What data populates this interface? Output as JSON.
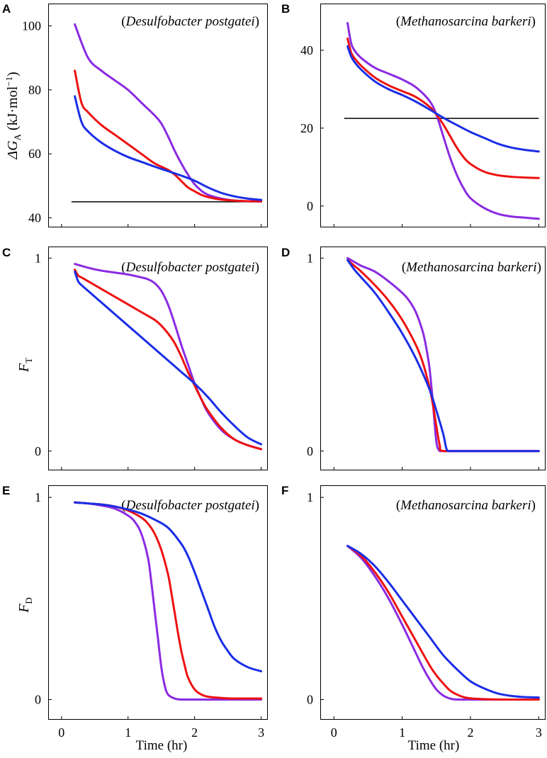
{
  "colors": {
    "purple": "#8a2be2",
    "red": "#ee1111",
    "blue": "#1a2ee6",
    "axis": "#000000",
    "reference": "#000000"
  },
  "x_axis": {
    "label": "Time (hr)",
    "ticks": [
      "0",
      "1",
      "2",
      "3"
    ]
  },
  "chart_data": [
    {
      "panel": "A",
      "type": "line",
      "organism": "Desulfobacter postgatei",
      "ylabel": {
        "prefix": "ΔG",
        "sub": "A",
        "unit": " (kJ·mol",
        "sup": "−1",
        "close": ")"
      },
      "xlim": [
        -0.2,
        3.1
      ],
      "ylim": [
        37,
        107
      ],
      "yticks": [
        40,
        60,
        80,
        100
      ],
      "xtick_labels": false,
      "hline": 45,
      "series": [
        {
          "color": "purple",
          "x": [
            0.2,
            0.4,
            0.6,
            0.8,
            1.0,
            1.2,
            1.4,
            1.5,
            1.6,
            1.7,
            1.8,
            1.9,
            2.0,
            2.1,
            2.2,
            2.4,
            2.6,
            2.8,
            3.0
          ],
          "y": [
            100.5,
            90,
            86,
            83,
            80,
            76,
            72,
            69.5,
            65.5,
            61,
            57,
            53.5,
            50.5,
            48.5,
            47.2,
            46,
            45.4,
            45.2,
            45.1
          ]
        },
        {
          "color": "red",
          "x": [
            0.2,
            0.3,
            0.4,
            0.6,
            0.8,
            1.0,
            1.2,
            1.4,
            1.6,
            1.7,
            1.8,
            1.9,
            2.0,
            2.1,
            2.2,
            2.4,
            2.6,
            2.8,
            3.0
          ],
          "y": [
            86,
            76,
            73,
            69,
            66,
            63,
            60,
            57,
            55,
            53.5,
            51.5,
            49.5,
            48.3,
            47.2,
            46.5,
            45.7,
            45.4,
            45.2,
            45.1
          ]
        },
        {
          "color": "blue",
          "x": [
            0.2,
            0.3,
            0.4,
            0.6,
            0.8,
            1.0,
            1.2,
            1.4,
            1.6,
            1.8,
            2.0,
            2.2,
            2.4,
            2.6,
            2.8,
            3.0
          ],
          "y": [
            78,
            70,
            67,
            63.5,
            61,
            59,
            57.5,
            56,
            54.6,
            53.2,
            51.6,
            49.5,
            47.8,
            46.7,
            46,
            45.6
          ]
        }
      ]
    },
    {
      "panel": "B",
      "type": "line",
      "organism": "Methanosarcina barkeri",
      "xlim": [
        -0.2,
        3.1
      ],
      "ylim": [
        -5.5,
        52
      ],
      "yticks": [
        0,
        20,
        40
      ],
      "xtick_labels": false,
      "hline": 22.5,
      "series": [
        {
          "color": "purple",
          "x": [
            0.2,
            0.25,
            0.3,
            0.4,
            0.6,
            0.8,
            1.0,
            1.2,
            1.4,
            1.5,
            1.6,
            1.7,
            1.8,
            1.9,
            2.0,
            2.2,
            2.4,
            2.6,
            2.8,
            3.0
          ],
          "y": [
            47,
            42,
            40,
            38,
            35.5,
            34,
            32.5,
            30.5,
            27,
            23.5,
            18,
            12.5,
            8,
            4.5,
            2,
            -0.5,
            -2,
            -2.7,
            -3,
            -3.3
          ]
        },
        {
          "color": "red",
          "x": [
            0.2,
            0.25,
            0.3,
            0.4,
            0.6,
            0.8,
            1.0,
            1.2,
            1.4,
            1.5,
            1.6,
            1.7,
            1.8,
            1.9,
            2.0,
            2.2,
            2.4,
            2.6,
            2.8,
            3.0
          ],
          "y": [
            43,
            39.5,
            38,
            36,
            33,
            31,
            29.5,
            28,
            25.5,
            23.5,
            21,
            18,
            15,
            12.5,
            10.8,
            8.8,
            7.9,
            7.5,
            7.3,
            7.2
          ]
        },
        {
          "color": "blue",
          "x": [
            0.2,
            0.25,
            0.3,
            0.4,
            0.6,
            0.8,
            1.0,
            1.2,
            1.4,
            1.6,
            1.8,
            2.0,
            2.2,
            2.4,
            2.6,
            2.8,
            3.0
          ],
          "y": [
            41,
            38.5,
            37,
            35,
            32,
            30,
            28.5,
            26.8,
            24.8,
            22.7,
            20.8,
            19,
            17.5,
            16,
            15,
            14.4,
            14
          ]
        }
      ]
    },
    {
      "panel": "C",
      "type": "line",
      "organism": "Desulfobacter postgatei",
      "ylabel": {
        "prefix": "F",
        "sub": "T"
      },
      "xlim": [
        -0.2,
        3.1
      ],
      "ylim": [
        -0.1,
        1.06
      ],
      "yticks": [
        0,
        1
      ],
      "xtick_labels": false,
      "series": [
        {
          "color": "purple",
          "x": [
            0.2,
            0.4,
            0.6,
            0.8,
            1.0,
            1.2,
            1.3,
            1.4,
            1.5,
            1.6,
            1.7,
            1.8,
            1.9,
            2.0,
            2.1,
            2.2,
            2.4,
            2.6,
            2.8,
            3.0
          ],
          "y": [
            0.97,
            0.95,
            0.935,
            0.925,
            0.915,
            0.9,
            0.89,
            0.87,
            0.83,
            0.76,
            0.66,
            0.55,
            0.45,
            0.35,
            0.27,
            0.2,
            0.11,
            0.06,
            0.03,
            0.01
          ]
        },
        {
          "color": "red",
          "x": [
            0.2,
            0.25,
            0.3,
            0.4,
            0.6,
            0.8,
            1.0,
            1.2,
            1.4,
            1.5,
            1.6,
            1.7,
            1.8,
            1.9,
            2.0,
            2.1,
            2.2,
            2.4,
            2.6,
            2.8,
            3.0
          ],
          "y": [
            0.94,
            0.91,
            0.9,
            0.88,
            0.84,
            0.8,
            0.76,
            0.72,
            0.68,
            0.65,
            0.61,
            0.56,
            0.49,
            0.41,
            0.34,
            0.27,
            0.21,
            0.12,
            0.06,
            0.03,
            0.01
          ]
        },
        {
          "color": "blue",
          "x": [
            0.2,
            0.25,
            0.3,
            0.4,
            0.6,
            0.8,
            1.0,
            1.2,
            1.4,
            1.6,
            1.8,
            2.0,
            2.2,
            2.4,
            2.6,
            2.8,
            3.0
          ],
          "y": [
            0.93,
            0.88,
            0.86,
            0.83,
            0.77,
            0.71,
            0.65,
            0.59,
            0.53,
            0.47,
            0.41,
            0.35,
            0.28,
            0.2,
            0.13,
            0.07,
            0.035
          ]
        }
      ]
    },
    {
      "panel": "D",
      "type": "line",
      "organism": "Methanosarcina barkeri",
      "xlim": [
        -0.2,
        3.1
      ],
      "ylim": [
        -0.1,
        1.06
      ],
      "yticks": [
        0,
        1
      ],
      "xtick_labels": false,
      "series": [
        {
          "color": "purple",
          "x": [
            0.2,
            0.3,
            0.4,
            0.6,
            0.8,
            1.0,
            1.1,
            1.2,
            1.3,
            1.35,
            1.4,
            1.45,
            1.5,
            1.55,
            1.6,
            2.0,
            2.5,
            3.0
          ],
          "y": [
            1.0,
            0.98,
            0.96,
            0.93,
            0.88,
            0.82,
            0.78,
            0.72,
            0.62,
            0.54,
            0.43,
            0.25,
            0.05,
            0.0,
            0.0,
            0.0,
            0.0,
            0.0
          ]
        },
        {
          "color": "red",
          "x": [
            0.2,
            0.3,
            0.4,
            0.6,
            0.8,
            1.0,
            1.2,
            1.3,
            1.4,
            1.45,
            1.5,
            1.55,
            1.6,
            2.0,
            2.5,
            3.0
          ],
          "y": [
            0.99,
            0.96,
            0.93,
            0.86,
            0.78,
            0.68,
            0.55,
            0.46,
            0.33,
            0.24,
            0.13,
            0.03,
            0.0,
            0.0,
            0.0,
            0.0
          ]
        },
        {
          "color": "blue",
          "x": [
            0.2,
            0.3,
            0.4,
            0.6,
            0.8,
            1.0,
            1.2,
            1.4,
            1.5,
            1.6,
            1.65,
            1.7,
            2.0,
            2.5,
            3.0
          ],
          "y": [
            0.99,
            0.94,
            0.9,
            0.82,
            0.72,
            0.61,
            0.48,
            0.32,
            0.21,
            0.09,
            0.01,
            0.0,
            0.0,
            0.0,
            0.0
          ]
        }
      ]
    },
    {
      "panel": "E",
      "type": "line",
      "organism": "Desulfobacter postgatei",
      "ylabel": {
        "prefix": "F",
        "sub": "D"
      },
      "xlim": [
        -0.2,
        3.1
      ],
      "ylim": [
        -0.1,
        1.06
      ],
      "yticks": [
        0,
        1
      ],
      "xtick_labels": true,
      "series": [
        {
          "color": "purple",
          "x": [
            0.2,
            0.4,
            0.6,
            0.8,
            1.0,
            1.1,
            1.2,
            1.3,
            1.35,
            1.4,
            1.45,
            1.5,
            1.55,
            1.6,
            1.7,
            1.8,
            2.0,
            2.5,
            3.0
          ],
          "y": [
            0.975,
            0.97,
            0.96,
            0.945,
            0.91,
            0.88,
            0.82,
            0.7,
            0.58,
            0.44,
            0.3,
            0.16,
            0.07,
            0.025,
            0.005,
            0.0,
            0.0,
            0.0,
            0.0
          ]
        },
        {
          "color": "red",
          "x": [
            0.2,
            0.4,
            0.6,
            0.8,
            1.0,
            1.2,
            1.3,
            1.4,
            1.5,
            1.6,
            1.65,
            1.7,
            1.75,
            1.8,
            1.85,
            1.9,
            2.0,
            2.1,
            2.2,
            2.4,
            2.6,
            3.0
          ],
          "y": [
            0.975,
            0.97,
            0.965,
            0.955,
            0.935,
            0.9,
            0.87,
            0.82,
            0.74,
            0.62,
            0.53,
            0.43,
            0.33,
            0.24,
            0.17,
            0.11,
            0.05,
            0.025,
            0.014,
            0.008,
            0.005,
            0.005
          ]
        },
        {
          "color": "blue",
          "x": [
            0.2,
            0.4,
            0.6,
            0.8,
            1.0,
            1.2,
            1.4,
            1.6,
            1.8,
            1.9,
            2.0,
            2.1,
            2.2,
            2.3,
            2.4,
            2.5,
            2.6,
            2.8,
            3.0
          ],
          "y": [
            0.975,
            0.97,
            0.965,
            0.955,
            0.94,
            0.92,
            0.89,
            0.85,
            0.77,
            0.71,
            0.63,
            0.54,
            0.45,
            0.36,
            0.29,
            0.24,
            0.2,
            0.16,
            0.14
          ]
        }
      ]
    },
    {
      "panel": "F",
      "type": "line",
      "organism": "Methanosarcina barkeri",
      "xlim": [
        -0.2,
        3.1
      ],
      "ylim": [
        -0.1,
        1.06
      ],
      "yticks": [
        0,
        1
      ],
      "xtick_labels": true,
      "series": [
        {
          "color": "purple",
          "x": [
            0.2,
            0.4,
            0.6,
            0.8,
            1.0,
            1.2,
            1.3,
            1.4,
            1.5,
            1.6,
            1.7,
            1.8,
            2.0,
            2.5,
            3.0
          ],
          "y": [
            0.76,
            0.7,
            0.61,
            0.5,
            0.37,
            0.23,
            0.16,
            0.1,
            0.05,
            0.02,
            0.005,
            0.0,
            0.0,
            0.0,
            0.0
          ]
        },
        {
          "color": "red",
          "x": [
            0.2,
            0.4,
            0.6,
            0.8,
            1.0,
            1.2,
            1.4,
            1.5,
            1.6,
            1.7,
            1.8,
            1.9,
            2.0,
            2.2,
            2.5,
            3.0
          ],
          "y": [
            0.76,
            0.71,
            0.63,
            0.53,
            0.41,
            0.29,
            0.17,
            0.12,
            0.08,
            0.045,
            0.025,
            0.012,
            0.006,
            0.002,
            0.0,
            0.0
          ]
        },
        {
          "color": "blue",
          "x": [
            0.2,
            0.4,
            0.6,
            0.8,
            1.0,
            1.2,
            1.4,
            1.6,
            1.8,
            2.0,
            2.2,
            2.4,
            2.6,
            2.8,
            3.0
          ],
          "y": [
            0.76,
            0.72,
            0.66,
            0.58,
            0.49,
            0.4,
            0.31,
            0.22,
            0.15,
            0.09,
            0.055,
            0.03,
            0.018,
            0.012,
            0.01
          ]
        }
      ]
    }
  ]
}
